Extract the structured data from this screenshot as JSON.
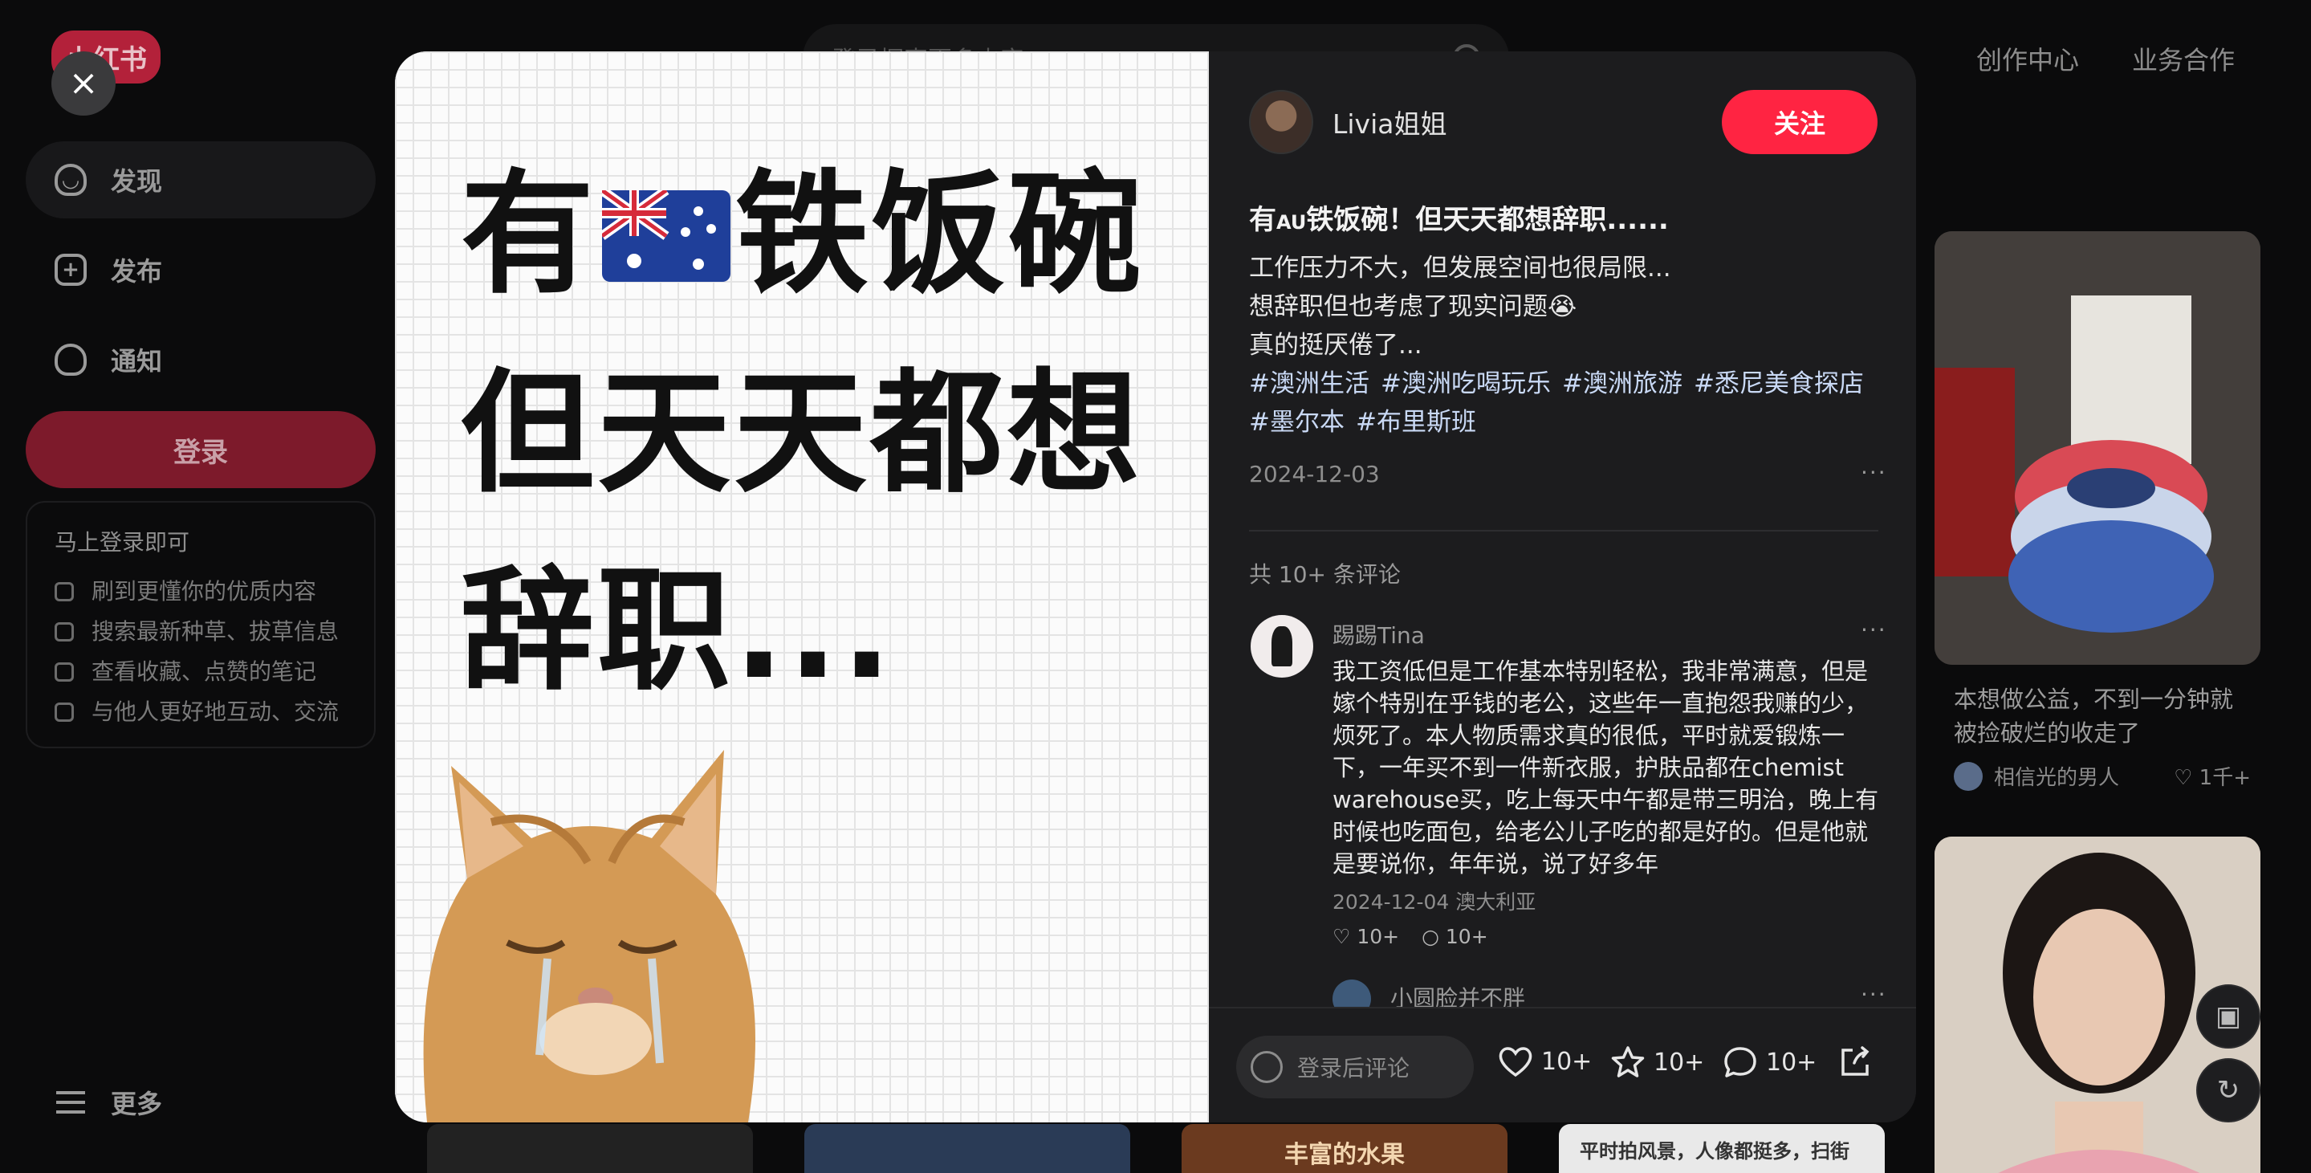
{
  "header": {
    "logo": "小红书",
    "search_placeholder": "登录探索更多内容",
    "nav": [
      "创作中心",
      "业务合作"
    ]
  },
  "sidebar": {
    "items": [
      {
        "label": "发现",
        "icon": "home-icon"
      },
      {
        "label": "发布",
        "icon": "plus-square-icon"
      },
      {
        "label": "通知",
        "icon": "bell-icon"
      }
    ],
    "login_label": "登录",
    "promo": {
      "title": "马上登录即可",
      "items": [
        {
          "text": "刷到更懂你的优质内容",
          "icon": "thumb-up-icon"
        },
        {
          "text": "搜索最新种草、拔草信息",
          "icon": "sprout-icon"
        },
        {
          "text": "查看收藏、点赞的笔记",
          "icon": "star-icon"
        },
        {
          "text": "与他人更好地互动、交流",
          "icon": "chat-icon"
        }
      ]
    },
    "more_label": "更多"
  },
  "feed": {
    "card1": {
      "title": "本想做公益，不到一分钟就被捡破烂的收走了",
      "author": "相信光的男人",
      "likes": "1千+"
    },
    "bottom_thumbs": [
      "丰富的水果",
      "平时拍风景，人像都挺多，扫街"
    ]
  },
  "note": {
    "image_text": {
      "line1_a": "有",
      "line1_b": "铁饭碗",
      "line2": "但天天都想",
      "line3": "辞职..."
    },
    "author": "Livia姐姐",
    "follow_label": "关注",
    "title_a": "有",
    "title_au": "AU",
    "title_b": "铁饭碗！但天天都想辞职......",
    "body": [
      "工作压力不大，但发展空间也很局限...",
      "想辞职但也考虑了现实问题😭",
      "真的挺厌倦了..."
    ],
    "tags": [
      "#澳洲生活",
      "#澳洲吃喝玩乐",
      "#澳洲旅游",
      "#悉尼美食探店",
      "#墨尔本",
      "#布里斯班"
    ],
    "date": "2024-12-03",
    "comment_count": "共 10+ 条评论"
  },
  "comments": [
    {
      "name": "踢踢Tina",
      "text": "我工资低但是工作基本特别轻松，我非常满意，但是嫁个特别在乎钱的老公，这些年一直抱怨我赚的少，烦死了。本人物质需求真的很低，平时就爱锻炼一下，一年买不到一件新衣服，护肤品都在chemist warehouse买，吃上每天中午都是带三明治，晚上有时候也吃面包，给老公儿子吃的都是好的。但是他就是要说你，年年说，说了好多年",
      "date": "2024-12-04 澳大利亚",
      "likes": "10+",
      "replies": "10+"
    },
    {
      "name": "小圆脸并不胖"
    }
  ],
  "bottom_bar": {
    "comment_placeholder": "登录后评论",
    "likes": "10+",
    "collects": "10+",
    "comments": "10+"
  },
  "colors": {
    "accent": "#ff2442",
    "login": "#7d1a2b",
    "tag": "#c9d9f5"
  }
}
